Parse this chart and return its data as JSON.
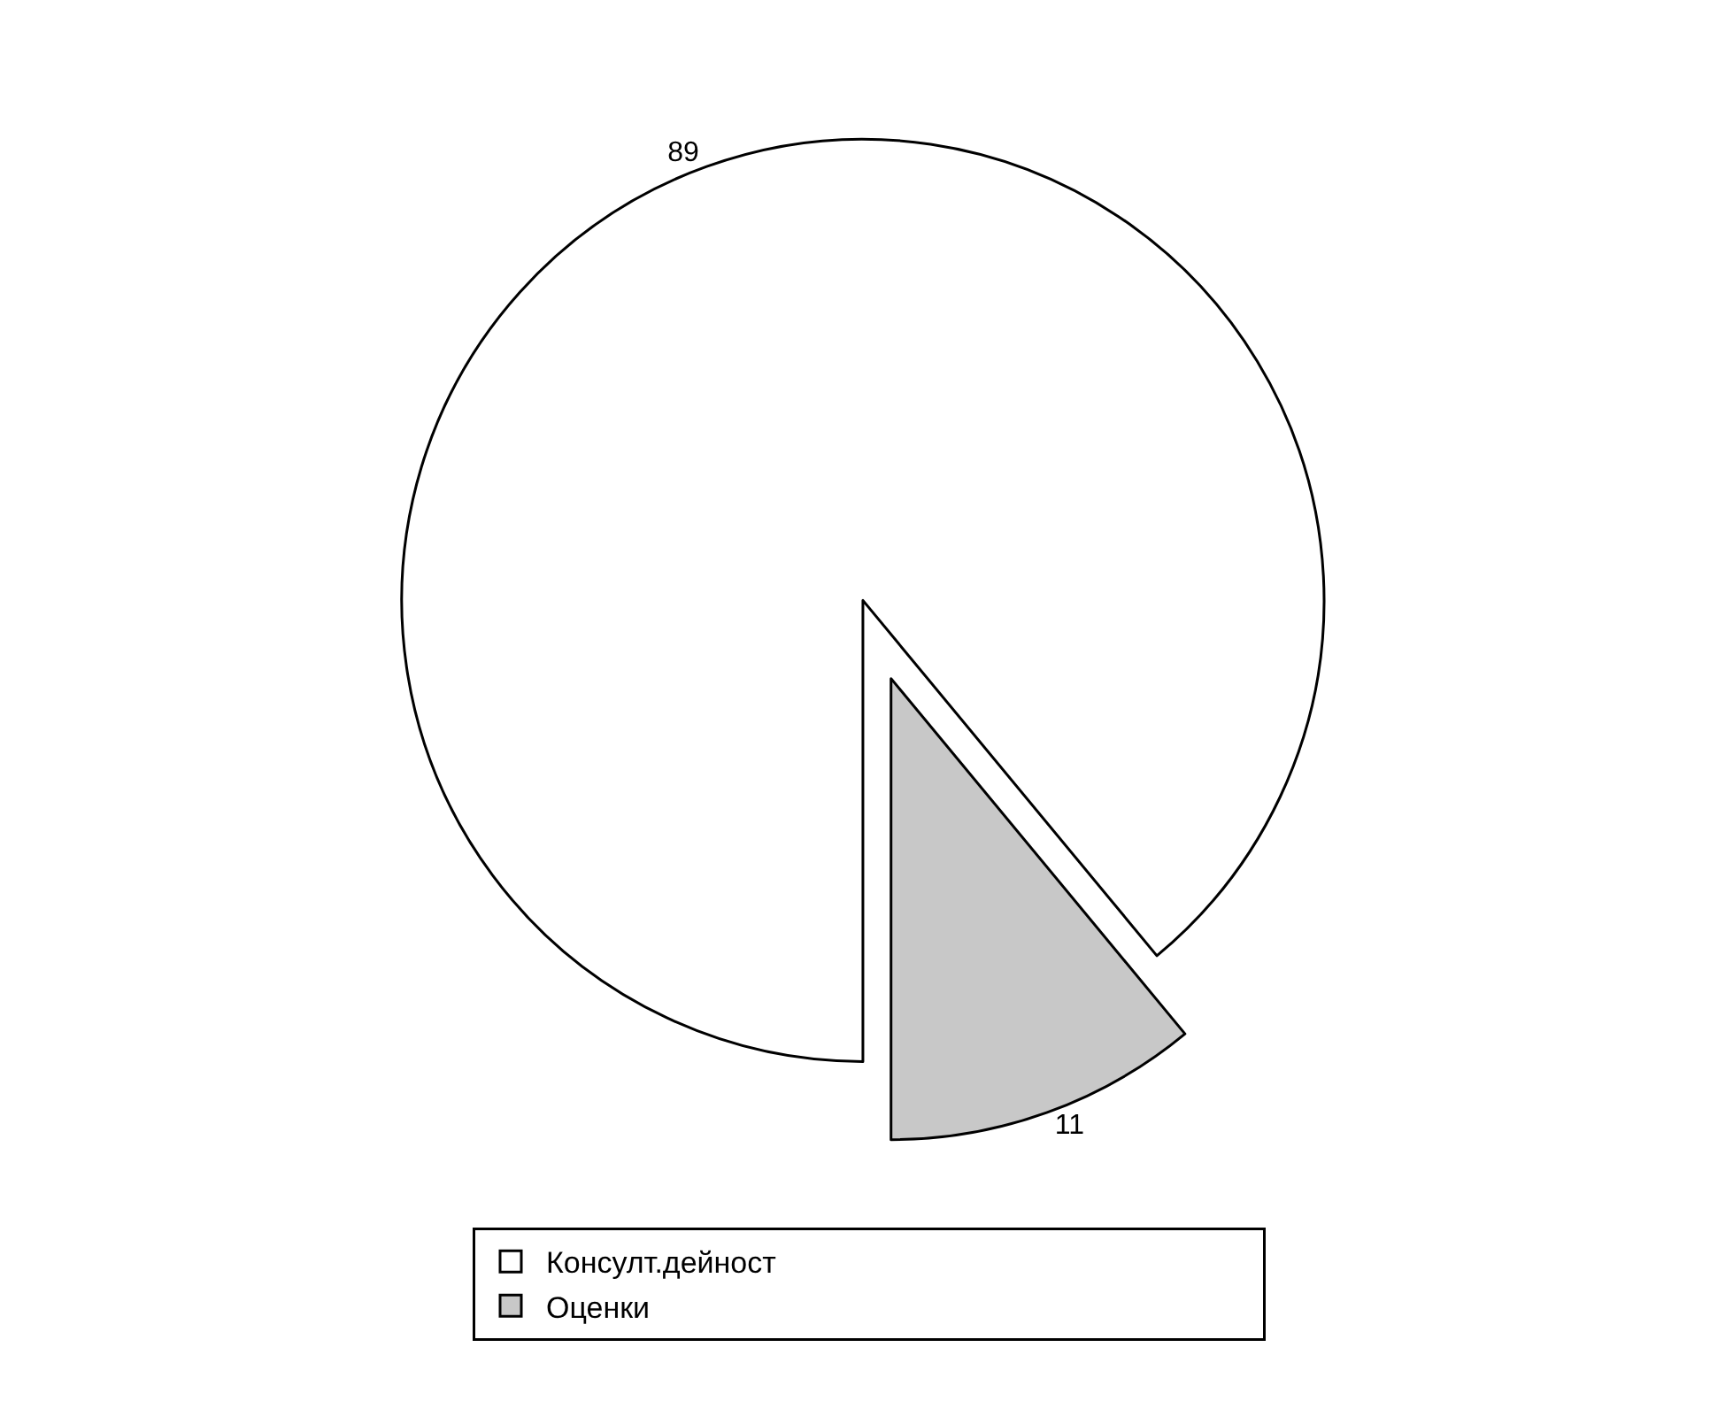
{
  "chart_data": {
    "type": "pie",
    "categories": [
      "Консулт.дейност",
      "Оценки"
    ],
    "values": [
      89,
      11
    ],
    "colors": [
      "#ffffff",
      "#c8c8c8"
    ],
    "data_labels": true,
    "legend": "bottom"
  }
}
